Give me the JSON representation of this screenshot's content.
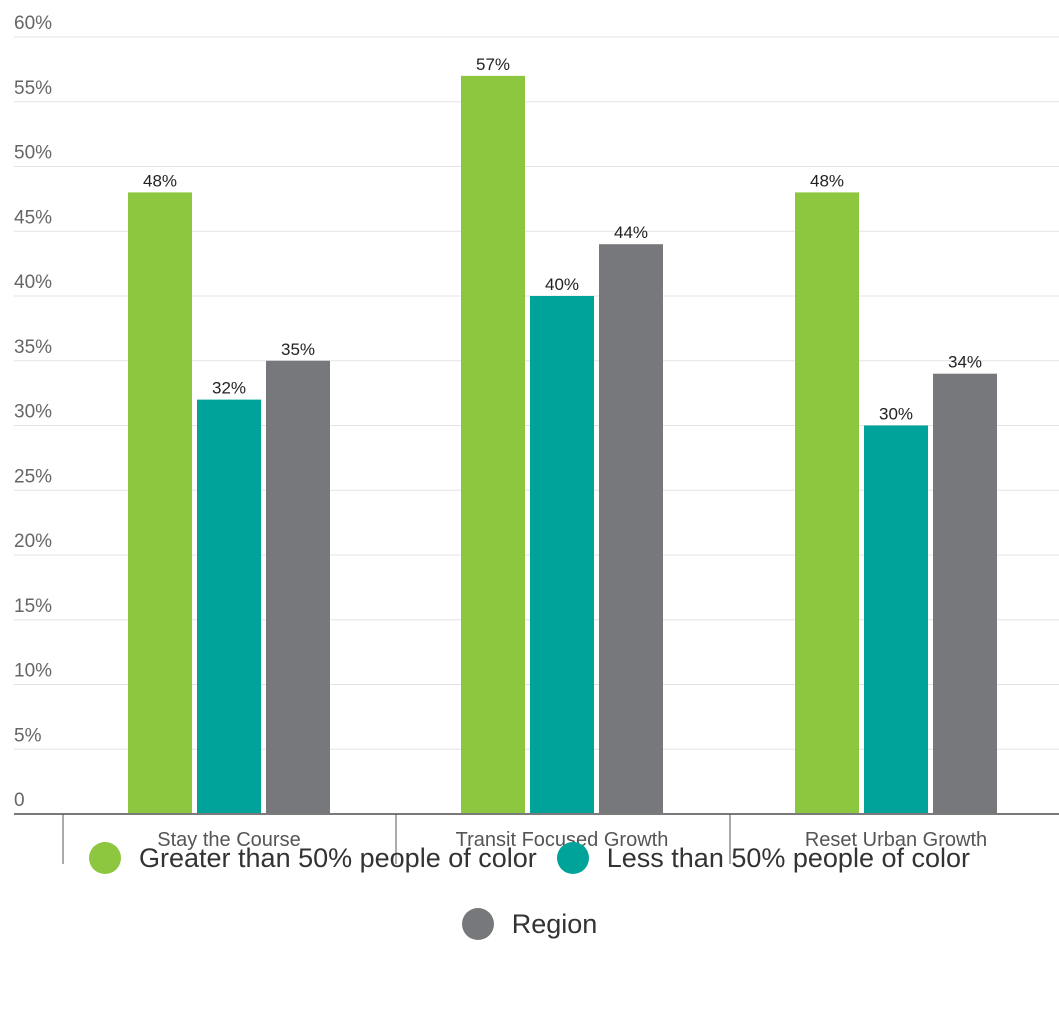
{
  "chart_data": {
    "type": "bar",
    "categories": [
      "Stay the Course",
      "Transit Focused Growth",
      "Reset Urban Growth"
    ],
    "series": [
      {
        "name": "Greater than 50% people of color",
        "values": [
          48,
          57,
          48
        ],
        "color": "#8dc63f"
      },
      {
        "name": "Less than 50% people of color",
        "values": [
          32,
          40,
          30
        ],
        "color": "#00a39a"
      },
      {
        "name": "Region",
        "values": [
          35,
          44,
          34
        ],
        "color": "#77787b"
      }
    ],
    "data_labels": [
      [
        "48%",
        "57%",
        "48%"
      ],
      [
        "32%",
        "40%",
        "30%"
      ],
      [
        "35%",
        "44%",
        "34%"
      ]
    ],
    "ylim": [
      0,
      60
    ],
    "y_ticks": [
      "0",
      "5%",
      "10%",
      "15%",
      "20%",
      "25%",
      "30%",
      "35%",
      "40%",
      "45%",
      "50%",
      "55%",
      "60%"
    ],
    "title": "",
    "xlabel": "",
    "ylabel": "",
    "grid": true,
    "legend_position": "bottom"
  }
}
